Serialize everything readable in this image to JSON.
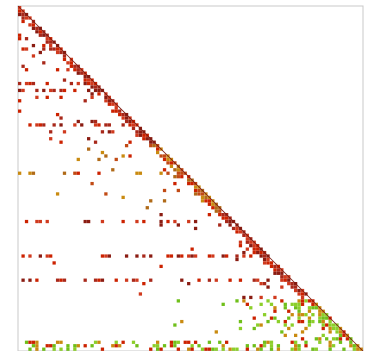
{
  "chart_data": {
    "type": "heatmap",
    "title": "",
    "xlabel": "",
    "ylabel": "",
    "shape": "lower-triangular",
    "matrix_size": 100,
    "grid": false,
    "legend": "none",
    "colors": {
      "frame": "#c8c8c8",
      "diagonal": "#7a1a10",
      "high": "#cc2200",
      "mid": "#c98a10",
      "low": "#6fbf1a"
    },
    "blocks": [
      {
        "row_start": 0,
        "row_end": 12,
        "density": 0.25,
        "intensity": "high"
      },
      {
        "row_start": 12,
        "row_end": 40,
        "density": 0.12,
        "intensity": "high"
      },
      {
        "row_start": 40,
        "row_end": 60,
        "density": 0.1,
        "intensity": "mid"
      },
      {
        "row_start": 60,
        "row_end": 85,
        "density": 0.1,
        "intensity": "high"
      },
      {
        "row_start": 85,
        "row_end": 100,
        "density": 0.45,
        "intensity": "low"
      }
    ],
    "dense_rows": [
      {
        "row": 9,
        "intensity": "high"
      },
      {
        "row": 22,
        "intensity": "high"
      },
      {
        "row": 24,
        "intensity": "high"
      },
      {
        "row": 34,
        "intensity": "high"
      },
      {
        "row": 48,
        "intensity": "mid"
      },
      {
        "row": 62,
        "intensity": "high"
      },
      {
        "row": 72,
        "intensity": "high"
      },
      {
        "row": 79,
        "intensity": "high"
      },
      {
        "row": 97,
        "intensity": "low"
      },
      {
        "row": 98,
        "intensity": "low"
      },
      {
        "row": 99,
        "intensity": "low"
      }
    ]
  }
}
